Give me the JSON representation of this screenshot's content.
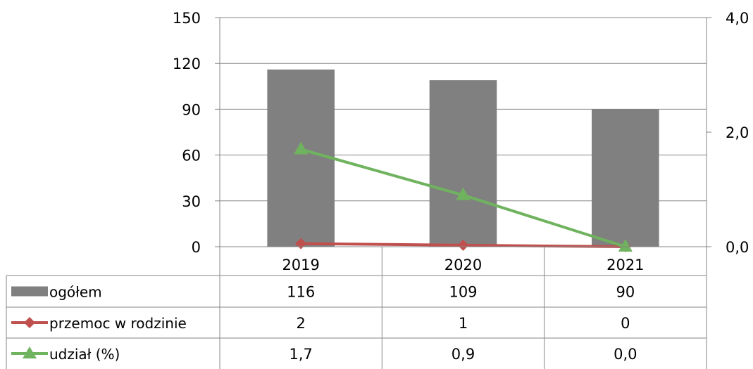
{
  "chart_data": {
    "type": "bar",
    "categories": [
      "2019",
      "2020",
      "2021"
    ],
    "series": [
      {
        "name": "ogółem",
        "kind": "bar",
        "axis": "left",
        "values": [
          116,
          109,
          90
        ],
        "color": "#808080",
        "table_labels": [
          "116",
          "109",
          "90"
        ]
      },
      {
        "name": "przemoc w rodzinie",
        "kind": "line",
        "axis": "left",
        "marker": "diamond",
        "values": [
          2,
          1,
          0
        ],
        "color": "#c0504d",
        "table_labels": [
          "2",
          "1",
          "0"
        ]
      },
      {
        "name": "udział (%)",
        "kind": "line",
        "axis": "right",
        "marker": "triangle",
        "values": [
          1.7,
          0.9,
          0.0
        ],
        "color": "#6fb35f",
        "table_labels": [
          "1,7",
          "0,9",
          "0,0"
        ]
      }
    ],
    "y_left": {
      "min": 0,
      "max": 150,
      "ticks": [
        "0",
        "30",
        "60",
        "90",
        "120",
        "150"
      ]
    },
    "y_right": {
      "min": 0,
      "max": 4,
      "ticks": [
        "0,0",
        "2,0",
        "4,0"
      ]
    },
    "grid": true,
    "data_table": true,
    "title": "",
    "xlabel": "",
    "ylabel": ""
  }
}
